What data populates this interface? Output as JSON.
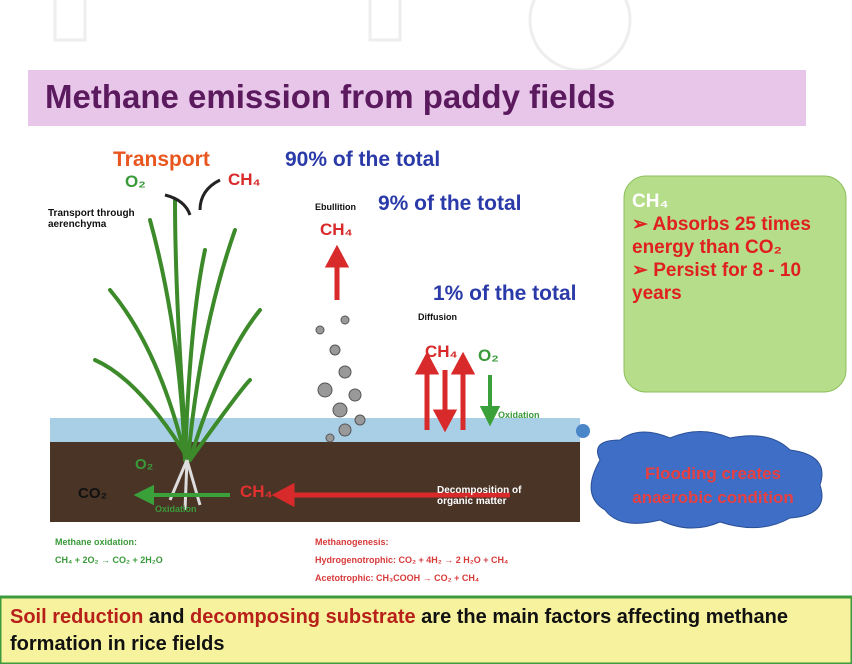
{
  "title": "Methane emission from paddy fields",
  "diagram": {
    "transport": {
      "label": "Transport",
      "share": "90% of the total",
      "o2": "O₂",
      "ch4": "CH₄",
      "note": "Transport through aerenchyma"
    },
    "ebullition": {
      "label": "Ebullition",
      "share": "9% of the total",
      "ch4": "CH₄"
    },
    "diffusion": {
      "label": "Diffusion",
      "share": "1% of the total",
      "ch4": "CH₄",
      "o2": "O₂",
      "oxidation": "Oxidation"
    },
    "soil": {
      "co2": "CO₂",
      "oxidation": "Oxidation",
      "ch4": "CH₄",
      "o2": "O₂",
      "decomposition": "Decomposition of organic matter"
    },
    "cloud": "Flooding creates anaerobic condition",
    "info_box": {
      "heading": "CH₄",
      "points": [
        "➢ Absorbs 25 times energy than CO₂",
        "➢ Persist for 8 - 10 years"
      ]
    },
    "methane_oxidation": {
      "label": "Methane oxidation:",
      "equation": "CH₄ + 2O₂ → CO₂ + 2H₂O"
    },
    "methanogenesis": {
      "label": "Methanogenesis:",
      "reactions": [
        "Hydrogenotrophic: CO₂ + 4H₂ → 2 H₂O + CH₄",
        "Acetotrophic: CH₃COOH → CO₂ + CH₄"
      ]
    }
  },
  "footer": {
    "parts": [
      "Soil reduction",
      " and ",
      "decomposing substrate",
      " are the main factors affecting methane formation in rice fields"
    ]
  }
}
